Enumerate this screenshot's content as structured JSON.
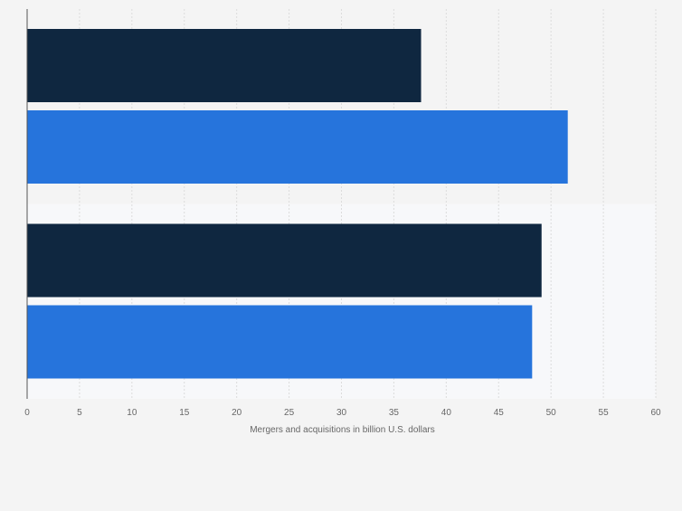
{
  "chart_data": {
    "type": "bar",
    "orientation": "horizontal",
    "title": "",
    "xlabel": "Mergers and acquisitions in billion U.S. dollars",
    "ylabel": "",
    "xlim": [
      0,
      60
    ],
    "x_ticks": [
      0,
      5,
      10,
      15,
      20,
      25,
      30,
      35,
      40,
      45,
      50,
      55,
      60
    ],
    "grid": true,
    "legend": "none",
    "groups": [
      {
        "label": "",
        "values": [
          37.6,
          51.6
        ]
      },
      {
        "label": "",
        "values": [
          49.1,
          48.2
        ]
      }
    ],
    "series": [
      {
        "color": "#0f2740",
        "values": [
          37.6,
          49.1
        ]
      },
      {
        "color": "#2674dc",
        "values": [
          51.6,
          48.2
        ]
      }
    ],
    "colors": {
      "background": "#f4f4f4",
      "band_alt": "#f7f8fa",
      "gridline": "#dcdcdc",
      "axis": "#555555",
      "tick_label": "#666666"
    }
  }
}
